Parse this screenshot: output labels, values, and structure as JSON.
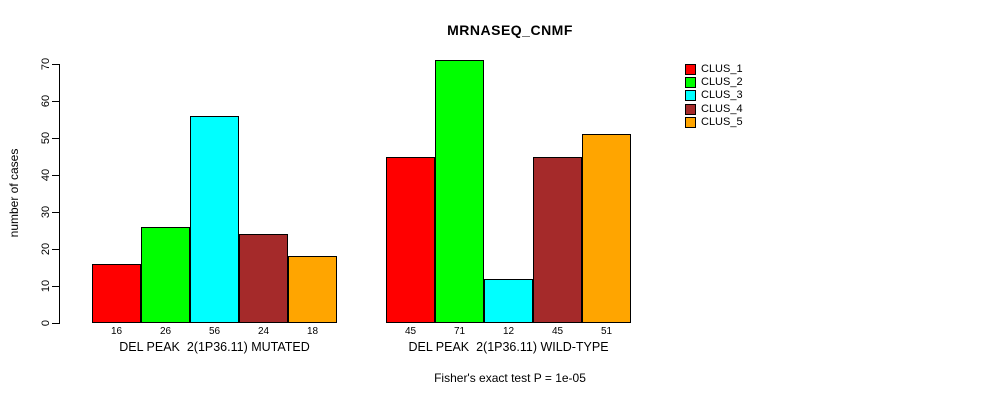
{
  "chart_data": {
    "type": "bar",
    "title": "MRNASEQ_CNMF",
    "ylabel": "number of cases",
    "xlabel": "",
    "ylim": [
      0,
      70
    ],
    "yticks": [
      0,
      10,
      20,
      30,
      40,
      50,
      60,
      70
    ],
    "grid": false,
    "legend_position": "top-right",
    "series": [
      {
        "name": "CLUS_1",
        "color": "#ff0000"
      },
      {
        "name": "CLUS_2",
        "color": "#00ff00"
      },
      {
        "name": "CLUS_3",
        "color": "#00ffff"
      },
      {
        "name": "CLUS_4",
        "color": "#a52a2a"
      },
      {
        "name": "CLUS_5",
        "color": "#ffa500"
      }
    ],
    "groups": [
      {
        "label": "DEL PEAK  2(1P36.11) MUTATED",
        "values": [
          16,
          26,
          56,
          24,
          18
        ]
      },
      {
        "label": "DEL PEAK  2(1P36.11) WILD-TYPE",
        "values": [
          45,
          71,
          12,
          45,
          51
        ]
      }
    ],
    "bar_value_labels_shown": true,
    "annotation": "Fisher's exact test P = 1e-05"
  }
}
